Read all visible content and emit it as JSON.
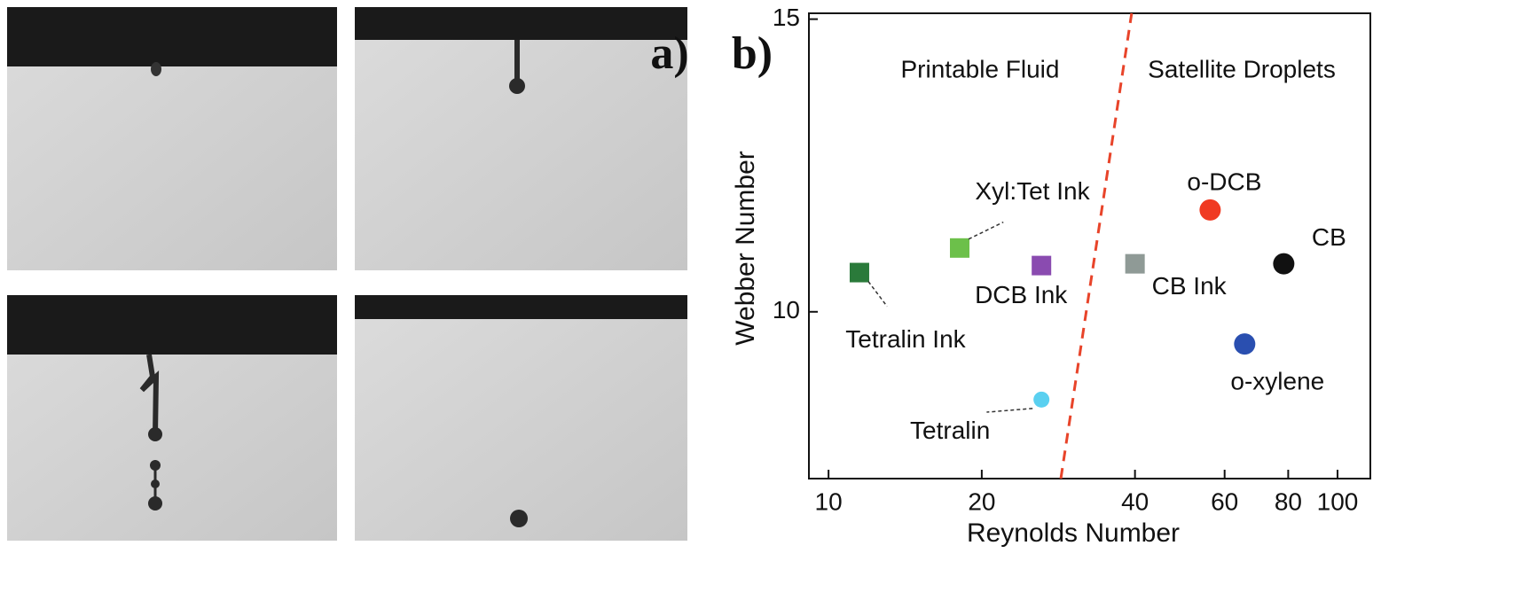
{
  "chart_data": {
    "type": "scatter",
    "panel_labels": [
      "a)",
      "b)"
    ],
    "x_label": "Reynolds Number",
    "y_label": "Webber Number",
    "log_x": true,
    "xlim": [
      9.15,
      116
    ],
    "ylim": [
      7.15,
      15.1
    ],
    "xticks": [
      10,
      20,
      40,
      60,
      80,
      100
    ],
    "yticks": [
      10,
      15
    ],
    "annotations": [
      {
        "text": "Printable Fluid",
        "color": "#2e9a48"
      },
      {
        "text": "Satellite Droplets",
        "color": "#111111"
      }
    ],
    "boundary": {
      "x": [
        28.6,
        39.4
      ],
      "y": [
        7.15,
        15.1
      ],
      "color": "#e8442a"
    },
    "series": [
      {
        "name": "Tetralin Ink",
        "color": "#2a7a3a",
        "marker": "square",
        "x": [
          11.5
        ],
        "values": [
          10.67
        ]
      },
      {
        "name": "Xyl:Tet Ink",
        "color": "#6cc04a",
        "marker": "square",
        "x": [
          18.1
        ],
        "values": [
          11.09
        ]
      },
      {
        "name": "DCB Ink",
        "color": "#8a4bb0",
        "marker": "square",
        "x": [
          26.2
        ],
        "values": [
          10.79
        ]
      },
      {
        "name": "Tetralin",
        "color": "#5ad0f0",
        "marker": "circle",
        "x": [
          26.2
        ],
        "values": [
          8.5
        ]
      },
      {
        "name": "CB Ink",
        "color": "#8f9a96",
        "marker": "square",
        "x": [
          40.0
        ],
        "values": [
          10.82
        ]
      },
      {
        "name": "o-DCB",
        "color": "#f03a22",
        "marker": "circle",
        "x": [
          56.2
        ],
        "values": [
          11.74
        ]
      },
      {
        "name": "CB",
        "color": "#111111",
        "marker": "circle",
        "x": [
          78.4
        ],
        "values": [
          10.82
        ]
      },
      {
        "name": "o-xylene",
        "color": "#2a4fb0",
        "marker": "circle",
        "x": [
          65.7
        ],
        "values": [
          9.45
        ]
      }
    ]
  }
}
